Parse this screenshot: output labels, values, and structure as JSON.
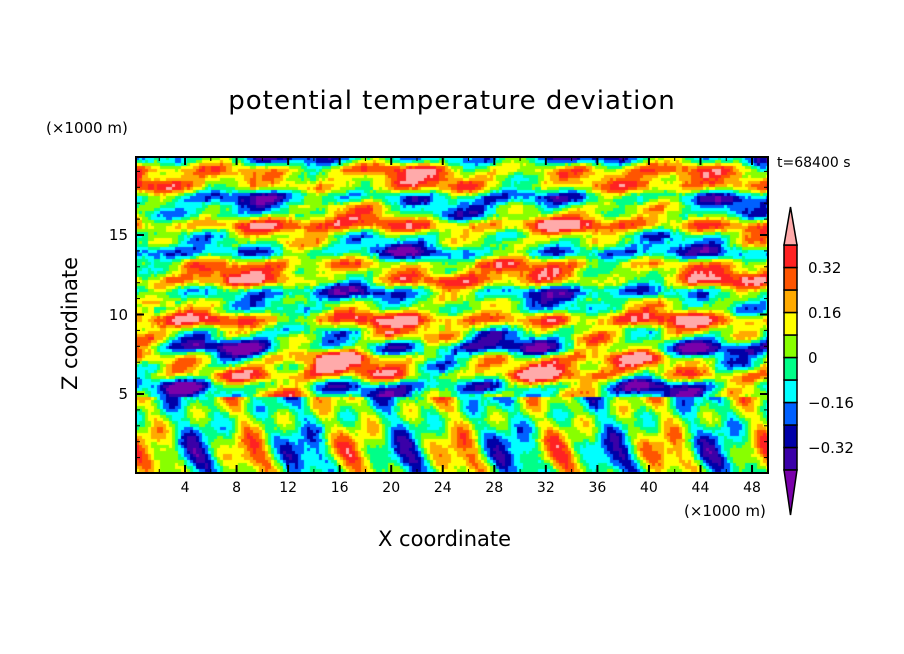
{
  "chart_data": {
    "type": "heatmap",
    "title": "potential temperature deviation",
    "xlabel": "X coordinate",
    "ylabel": "Z coordinate",
    "x_unit": "(×1000 m)",
    "y_unit": "(×1000 m)",
    "time_label": "t=68400 s",
    "xlim": [
      0,
      49.2
    ],
    "ylim": [
      0,
      19.9
    ],
    "xticks": [
      4,
      8,
      12,
      16,
      20,
      24,
      28,
      32,
      36,
      40,
      44,
      48
    ],
    "yticks": [
      5,
      10,
      15
    ],
    "colorbar": {
      "levels": [
        -0.4,
        -0.32,
        -0.24,
        -0.16,
        -0.08,
        0,
        0.08,
        0.16,
        0.24,
        0.32,
        0.4
      ],
      "tick_labels": [
        "0.32",
        "0.16",
        "0",
        "−0.16",
        "−0.32"
      ],
      "tick_values": [
        0.32,
        0.16,
        0,
        -0.16,
        -0.32
      ],
      "extend": "both",
      "colors": [
        "#7a00aa",
        "#3a00a8",
        "#0000a8",
        "#0060ff",
        "#00ffff",
        "#00ff88",
        "#88ff00",
        "#ffff00",
        "#ffaa00",
        "#ff5500",
        "#ff2222",
        "#ffaaaa"
      ]
    }
  }
}
